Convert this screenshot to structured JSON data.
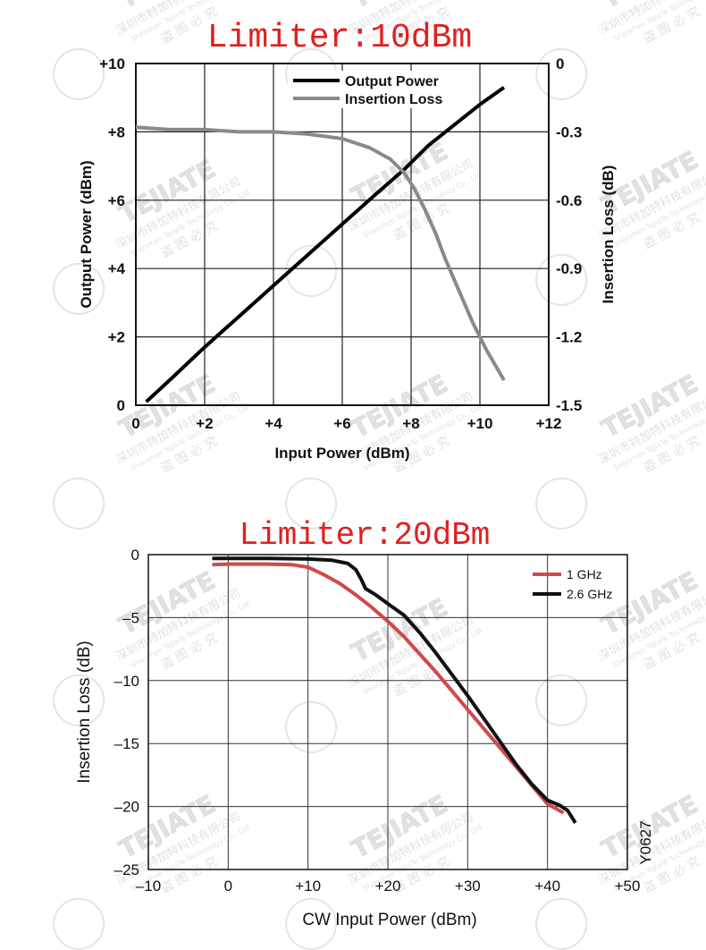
{
  "watermark": {
    "brand": "TEJIATE",
    "company_cn": "深圳市特加特科技有限公司",
    "company_en": "Shenzhen TeJiaTe Technology Co., Ltd",
    "notice": "盗 图 必 究"
  },
  "chart_data": [
    {
      "type": "line",
      "title": "Limiter:10dBm",
      "xlabel": "Input Power (dBm)",
      "ylabel": "Output Power (dBm)",
      "y2label": "Insertion Loss (dB)",
      "xlim": [
        0,
        12
      ],
      "ylim": [
        0,
        10
      ],
      "y2lim": [
        -1.5,
        0
      ],
      "xticks": [
        "0",
        "+2",
        "+4",
        "+6",
        "+8",
        "+10",
        "+12"
      ],
      "yticks": [
        "0",
        "+2",
        "+4",
        "+6",
        "+8",
        "+10"
      ],
      "y2ticks": [
        "-1.5",
        "-1.2",
        "-0.9",
        "-0.6",
        "-0.3",
        "0"
      ],
      "grid": true,
      "legend_position": "top-center",
      "series": [
        {
          "name": "Output Power",
          "axis": "left",
          "color": "#000000",
          "points": [
            [
              0.3,
              0.1
            ],
            [
              1,
              0.75
            ],
            [
              2,
              1.7
            ],
            [
              3,
              2.6
            ],
            [
              4,
              3.5
            ],
            [
              5,
              4.4
            ],
            [
              6,
              5.3
            ],
            [
              7,
              6.2
            ],
            [
              7.8,
              6.9
            ],
            [
              8.5,
              7.6
            ],
            [
              9,
              8.0
            ],
            [
              9.5,
              8.4
            ],
            [
              10,
              8.8
            ],
            [
              10.7,
              9.3
            ]
          ]
        },
        {
          "name": "Insertion Loss",
          "axis": "right",
          "color": "#8a8a8a",
          "points": [
            [
              0,
              -0.28
            ],
            [
              1,
              -0.29
            ],
            [
              2,
              -0.29
            ],
            [
              3,
              -0.3
            ],
            [
              4,
              -0.3
            ],
            [
              5,
              -0.31
            ],
            [
              6,
              -0.33
            ],
            [
              6.8,
              -0.37
            ],
            [
              7.4,
              -0.42
            ],
            [
              7.8,
              -0.48
            ],
            [
              8.1,
              -0.55
            ],
            [
              8.4,
              -0.64
            ],
            [
              8.7,
              -0.74
            ],
            [
              9,
              -0.86
            ],
            [
              9.4,
              -1.0
            ],
            [
              9.8,
              -1.14
            ],
            [
              10.2,
              -1.26
            ],
            [
              10.7,
              -1.39
            ]
          ]
        }
      ]
    },
    {
      "type": "line",
      "title": "Limiter:20dBm",
      "xlabel": "CW Input Power (dBm)",
      "ylabel": "Insertion Loss (dB)",
      "xlim": [
        -10,
        50
      ],
      "ylim": [
        -25,
        0
      ],
      "xticks": [
        "–10",
        "0",
        "+10",
        "+20",
        "+30",
        "+40",
        "+50"
      ],
      "yticks": [
        "–25",
        "–20",
        "–15",
        "–10",
        "–5",
        "0"
      ],
      "grid": true,
      "legend_position": "top-right",
      "annotation": "Y0627",
      "series": [
        {
          "name": "1 GHz",
          "color": "#d04a4a",
          "points": [
            [
              -2,
              -0.8
            ],
            [
              0,
              -0.75
            ],
            [
              5,
              -0.75
            ],
            [
              8,
              -0.8
            ],
            [
              10,
              -1.0
            ],
            [
              12,
              -1.6
            ],
            [
              14,
              -2.3
            ],
            [
              16,
              -3.2
            ],
            [
              18,
              -4.2
            ],
            [
              20,
              -5.3
            ],
            [
              22,
              -6.5
            ],
            [
              24,
              -7.9
            ],
            [
              26,
              -9.3
            ],
            [
              28,
              -10.8
            ],
            [
              30,
              -12.3
            ],
            [
              32,
              -13.8
            ],
            [
              34,
              -15.3
            ],
            [
              36,
              -16.8
            ],
            [
              38,
              -18.3
            ],
            [
              40,
              -19.8
            ],
            [
              42,
              -20.5
            ]
          ]
        },
        {
          "name": "2.6 GHz",
          "color": "#111111",
          "points": [
            [
              -2,
              -0.3
            ],
            [
              5,
              -0.3
            ],
            [
              10,
              -0.35
            ],
            [
              13,
              -0.45
            ],
            [
              15,
              -0.7
            ],
            [
              16,
              -1.2
            ],
            [
              16.7,
              -2.0
            ],
            [
              17.2,
              -2.7
            ],
            [
              18.5,
              -3.2
            ],
            [
              20,
              -3.9
            ],
            [
              22,
              -4.8
            ],
            [
              24,
              -6.2
            ],
            [
              26,
              -7.8
            ],
            [
              28,
              -9.5
            ],
            [
              30,
              -11.2
            ],
            [
              32,
              -13.0
            ],
            [
              34,
              -14.8
            ],
            [
              36,
              -16.6
            ],
            [
              38,
              -18.2
            ],
            [
              40,
              -19.5
            ],
            [
              41.5,
              -19.9
            ],
            [
              42.5,
              -20.3
            ],
            [
              43.5,
              -21.3
            ]
          ]
        }
      ]
    }
  ]
}
